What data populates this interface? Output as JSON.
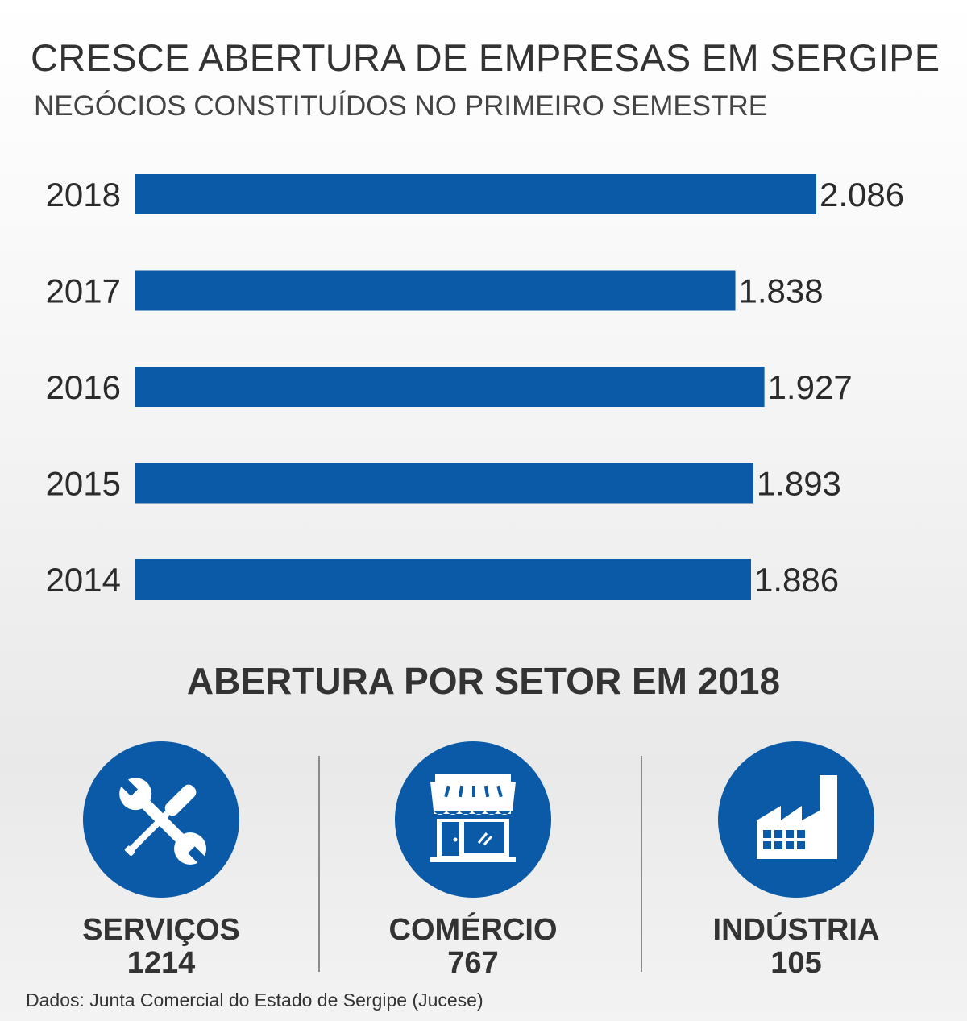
{
  "header": {
    "title": "CRESCE ABERTURA DE EMPRESAS EM SERGIPE",
    "subtitle": "NEGÓCIOS CONSTITUÍDOS NO PRIMEIRO SEMESTRE"
  },
  "chart_data": {
    "type": "bar",
    "orientation": "horizontal",
    "title": "CRESCE ABERTURA DE EMPRESAS EM SERGIPE",
    "subtitle": "NEGÓCIOS CONSTITUÍDOS NO PRIMEIRO SEMESTRE",
    "categories": [
      "2018",
      "2017",
      "2016",
      "2015",
      "2014"
    ],
    "values": [
      2086,
      1838,
      1927,
      1893,
      1886
    ],
    "value_labels": [
      "2.086",
      "1.838",
      "1.927",
      "1.893",
      "1.886"
    ],
    "xlabel": "",
    "ylabel": "",
    "grid": false,
    "bar_color": "#0a5aa8"
  },
  "sectors": {
    "title": "ABERTURA POR SETOR EM 2018",
    "items": [
      {
        "label": "SERVIÇOS",
        "value": "1214",
        "icon": "tools-icon"
      },
      {
        "label": "COMÉRCIO",
        "value": "767",
        "icon": "storefront-icon"
      },
      {
        "label": "INDÚSTRIA",
        "value": "105",
        "icon": "factory-icon"
      }
    ]
  },
  "colors": {
    "accent": "#0a5aa8",
    "text": "#333333"
  },
  "source": "Dados: Junta Comercial do Estado de Sergipe (Jucese)"
}
